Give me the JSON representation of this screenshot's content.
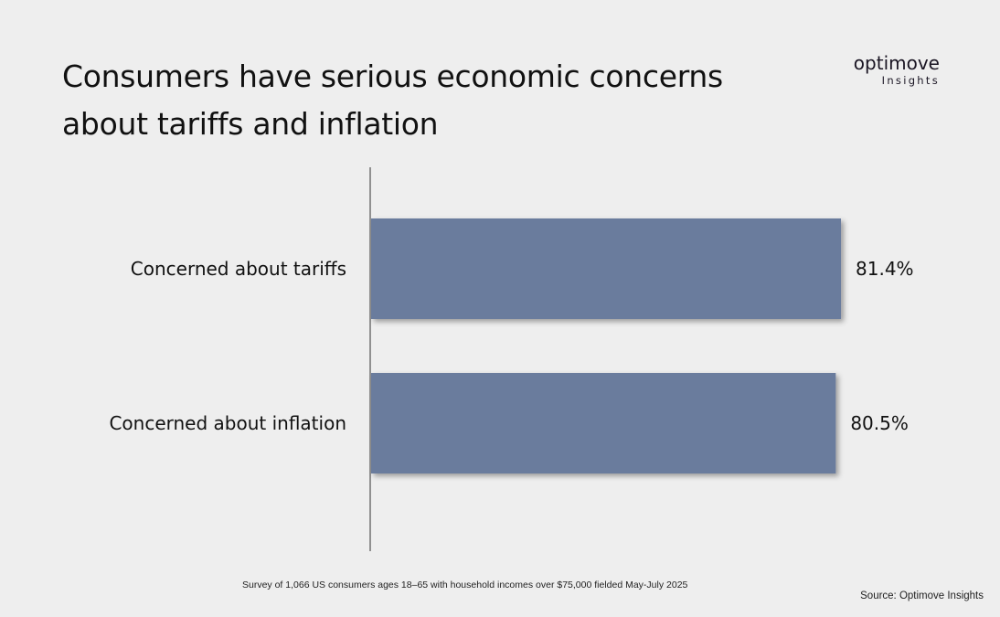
{
  "chart_data": {
    "type": "bar",
    "orientation": "horizontal",
    "title": "Consumers have serious economic concerns about tariffs and inflation",
    "categories": [
      "Concerned about tariffs",
      "Concerned about inflation"
    ],
    "values": [
      81.4,
      80.5
    ],
    "value_labels": [
      "81.4%",
      "80.5%"
    ],
    "xlim": [
      0,
      100
    ],
    "unit": "%",
    "bar_color": "#6b7b9d",
    "grid": false,
    "footnote": "Survey of 1,066 US consumers ages 18–65 with household incomes over $75,000 fielded May-July 2025",
    "source": "Source: Optimove Insights"
  },
  "logo": {
    "main": "optimove",
    "sub": "Insights"
  }
}
